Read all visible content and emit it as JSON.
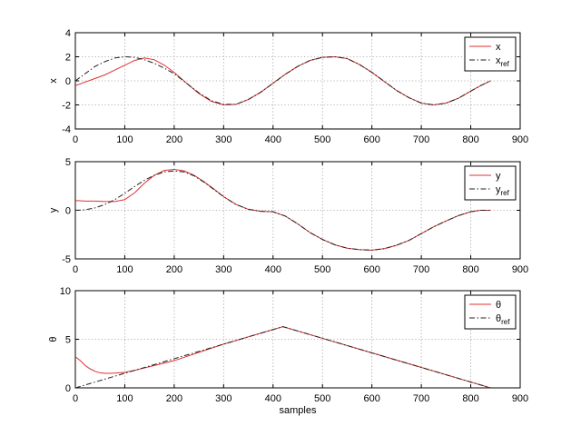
{
  "chart_data": [
    {
      "type": "line",
      "title": "",
      "xlabel": "",
      "ylabel": "x",
      "xlim": [
        0,
        900
      ],
      "ylim": [
        -4,
        4
      ],
      "xticks": [
        0,
        100,
        200,
        300,
        400,
        500,
        600,
        700,
        800,
        900
      ],
      "yticks": [
        -4,
        -2,
        0,
        2,
        4
      ],
      "grid": true,
      "legend_position": "top-right",
      "series": [
        {
          "name": "x",
          "legend_main": "x",
          "legend_sub": "",
          "color": "#e03030",
          "style": "solid",
          "x": [
            0,
            20,
            40,
            60,
            80,
            100,
            120,
            140,
            160,
            180,
            200,
            225,
            250,
            275,
            300,
            325,
            350,
            375,
            400,
            425,
            450,
            475,
            500,
            525,
            550,
            575,
            600,
            625,
            650,
            675,
            700,
            725,
            750,
            775,
            800,
            820,
            840
          ],
          "y": [
            -0.4,
            -0.1,
            0.2,
            0.5,
            0.9,
            1.3,
            1.7,
            1.9,
            1.75,
            1.3,
            0.7,
            -0.2,
            -1.05,
            -1.7,
            -2.0,
            -1.95,
            -1.55,
            -0.95,
            -0.2,
            0.55,
            1.2,
            1.7,
            1.95,
            2.0,
            1.85,
            1.35,
            0.7,
            -0.05,
            -0.8,
            -1.4,
            -1.85,
            -2.0,
            -1.85,
            -1.45,
            -0.85,
            -0.4,
            0.0
          ]
        },
        {
          "name": "x_ref",
          "legend_main": "x",
          "legend_sub": "ref",
          "color": "#222222",
          "style": "dashdot",
          "x": [
            0,
            20,
            40,
            60,
            80,
            100,
            120,
            140,
            160,
            180,
            200,
            225,
            250,
            275,
            300,
            325,
            350,
            375,
            400,
            425,
            450,
            475,
            500,
            525,
            550,
            575,
            600,
            625,
            650,
            675,
            700,
            725,
            750,
            775,
            800,
            820,
            840
          ],
          "y": [
            0.0,
            0.6,
            1.2,
            1.6,
            1.9,
            2.0,
            1.95,
            1.75,
            1.45,
            1.05,
            0.6,
            -0.2,
            -1.0,
            -1.65,
            -1.95,
            -1.95,
            -1.55,
            -0.95,
            -0.2,
            0.55,
            1.2,
            1.7,
            1.95,
            2.0,
            1.85,
            1.35,
            0.7,
            -0.05,
            -0.8,
            -1.4,
            -1.85,
            -2.0,
            -1.85,
            -1.45,
            -0.85,
            -0.4,
            0.0
          ]
        }
      ]
    },
    {
      "type": "line",
      "title": "",
      "xlabel": "",
      "ylabel": "y",
      "xlim": [
        0,
        900
      ],
      "ylim": [
        -5,
        5
      ],
      "xticks": [
        0,
        100,
        200,
        300,
        400,
        500,
        600,
        700,
        800,
        900
      ],
      "yticks": [
        -5,
        0,
        5
      ],
      "grid": true,
      "legend_position": "top-right",
      "series": [
        {
          "name": "y",
          "legend_main": "y",
          "legend_sub": "",
          "color": "#e03030",
          "style": "solid",
          "x": [
            0,
            20,
            40,
            60,
            80,
            100,
            120,
            140,
            160,
            180,
            200,
            220,
            240,
            260,
            280,
            300,
            325,
            350,
            375,
            400,
            425,
            450,
            475,
            500,
            525,
            550,
            575,
            600,
            625,
            650,
            675,
            700,
            725,
            750,
            775,
            800,
            820,
            840
          ],
          "y": [
            1.0,
            0.95,
            0.95,
            0.9,
            0.9,
            1.1,
            1.8,
            2.8,
            3.6,
            4.1,
            4.2,
            4.05,
            3.6,
            2.95,
            2.2,
            1.4,
            0.6,
            0.1,
            -0.1,
            -0.15,
            -0.6,
            -1.4,
            -2.3,
            -3.0,
            -3.55,
            -3.9,
            -4.05,
            -4.1,
            -3.95,
            -3.6,
            -3.1,
            -2.4,
            -1.7,
            -1.1,
            -0.55,
            -0.15,
            0.0,
            0.0
          ]
        },
        {
          "name": "y_ref",
          "legend_main": "y",
          "legend_sub": "ref",
          "color": "#222222",
          "style": "dashdot",
          "x": [
            0,
            20,
            40,
            60,
            80,
            100,
            120,
            140,
            160,
            180,
            200,
            220,
            240,
            260,
            280,
            300,
            325,
            350,
            375,
            400,
            425,
            450,
            475,
            500,
            525,
            550,
            575,
            600,
            625,
            650,
            675,
            700,
            725,
            750,
            775,
            800,
            820,
            840
          ],
          "y": [
            0.0,
            0.05,
            0.25,
            0.6,
            1.1,
            1.75,
            2.45,
            3.1,
            3.6,
            3.95,
            4.05,
            3.95,
            3.55,
            2.9,
            2.15,
            1.4,
            0.6,
            0.1,
            -0.1,
            -0.15,
            -0.6,
            -1.4,
            -2.3,
            -3.0,
            -3.55,
            -3.9,
            -4.05,
            -4.1,
            -3.95,
            -3.6,
            -3.1,
            -2.4,
            -1.7,
            -1.1,
            -0.55,
            -0.15,
            0.0,
            0.0
          ]
        }
      ]
    },
    {
      "type": "line",
      "title": "",
      "xlabel": "samples",
      "ylabel": "θ",
      "xlim": [
        0,
        900
      ],
      "ylim": [
        0,
        10
      ],
      "xticks": [
        0,
        100,
        200,
        300,
        400,
        500,
        600,
        700,
        800,
        900
      ],
      "yticks": [
        0,
        5,
        10
      ],
      "grid": true,
      "legend_position": "top-right",
      "series": [
        {
          "name": "θ",
          "legend_main": "θ",
          "legend_sub": "",
          "color": "#e03030",
          "style": "solid",
          "x": [
            0,
            10,
            20,
            30,
            40,
            50,
            60,
            70,
            80,
            100,
            120,
            140,
            160,
            200,
            300,
            420,
            500,
            600,
            700,
            800,
            840
          ],
          "y": [
            3.2,
            2.8,
            2.3,
            1.95,
            1.7,
            1.55,
            1.5,
            1.5,
            1.52,
            1.6,
            1.8,
            2.05,
            2.3,
            2.8,
            4.5,
            6.3,
            5.1,
            3.6,
            2.1,
            0.6,
            0.0
          ]
        },
        {
          "name": "θ_ref",
          "legend_main": "θ",
          "legend_sub": "ref",
          "color": "#222222",
          "style": "dashdot",
          "x": [
            0,
            420,
            840
          ],
          "y": [
            0.0,
            6.3,
            0.0
          ]
        }
      ]
    }
  ]
}
